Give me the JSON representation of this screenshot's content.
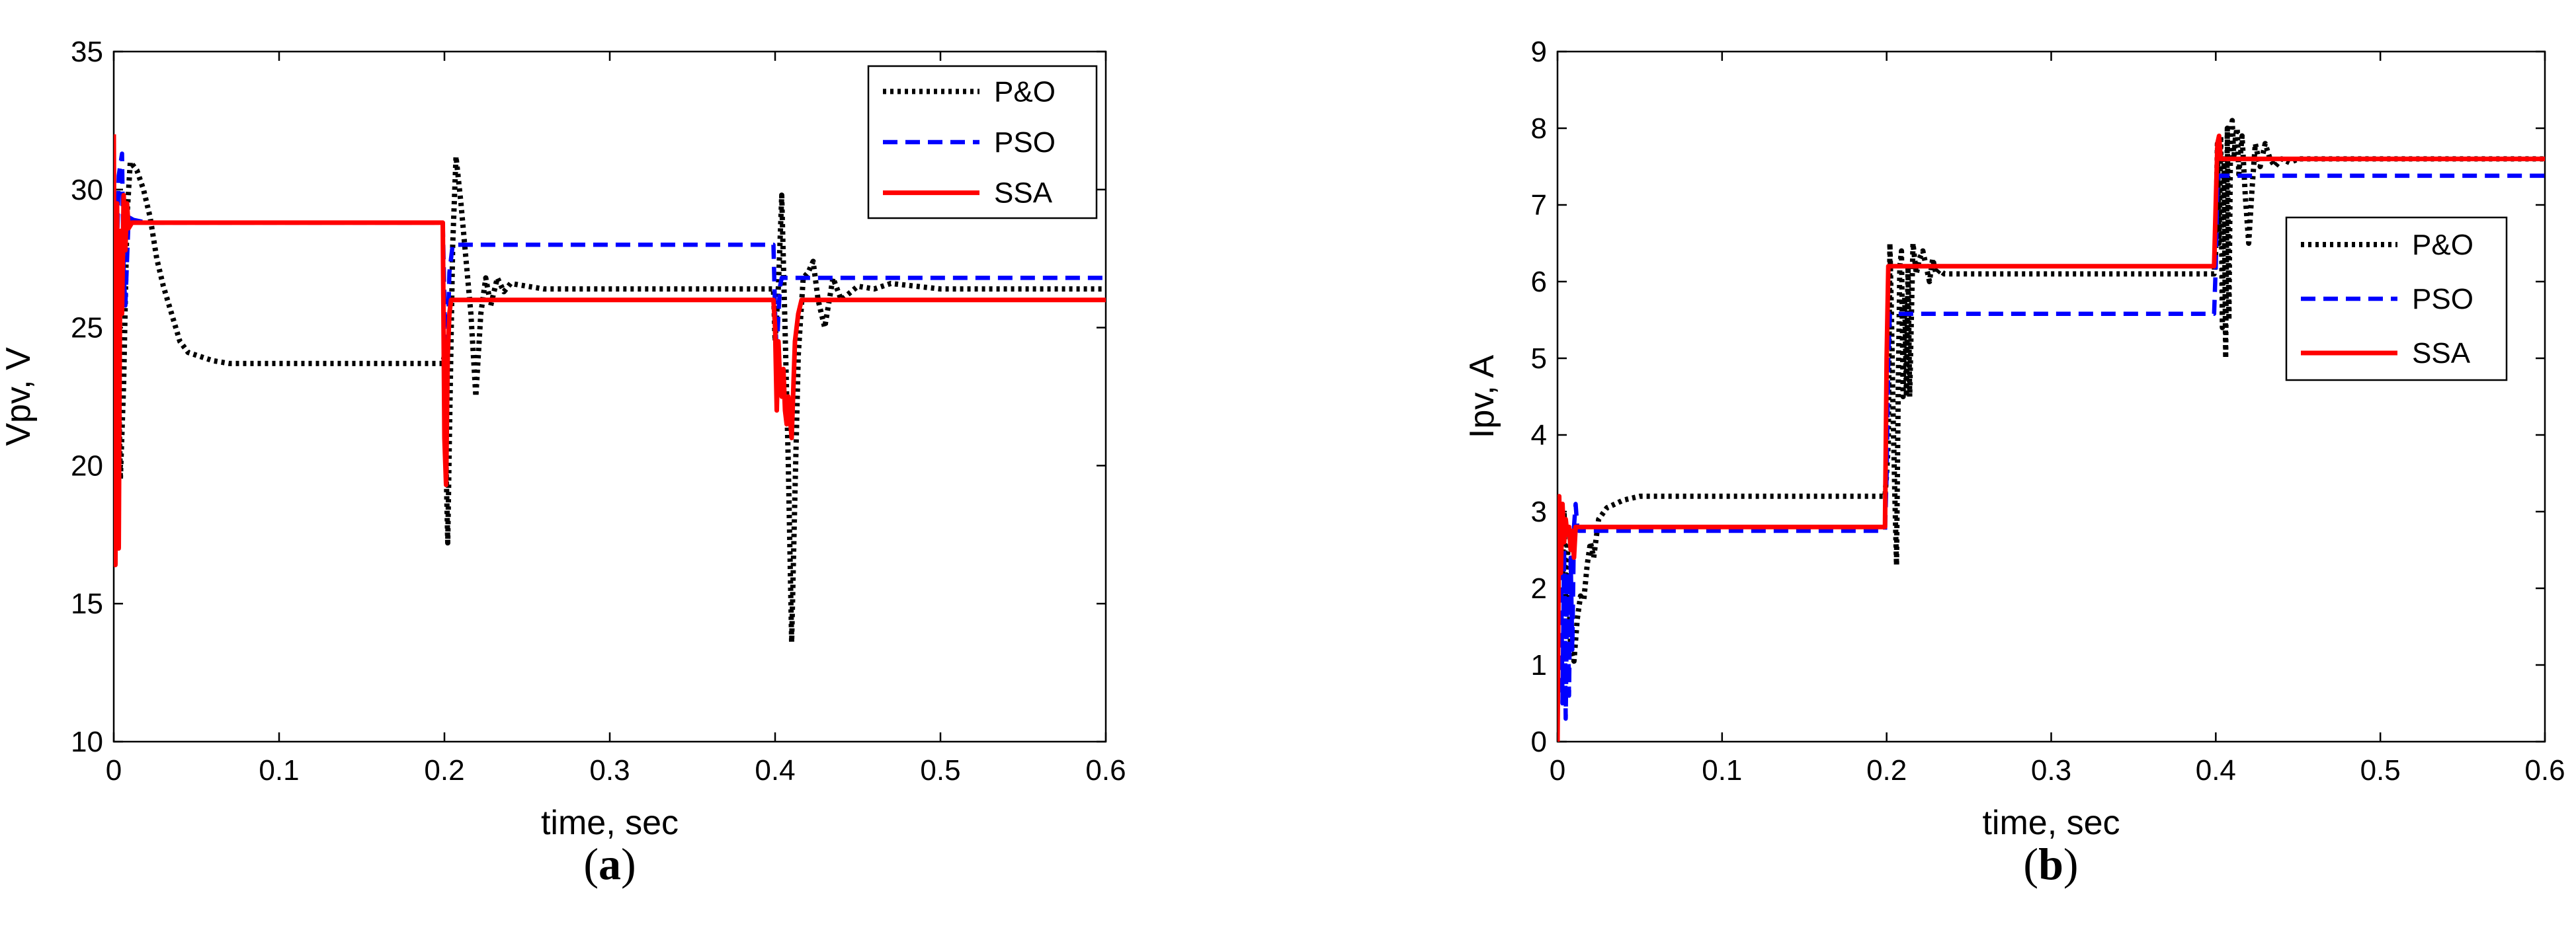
{
  "chart_data": [
    {
      "type": "line",
      "caption": "(a)",
      "xlabel": "time, sec",
      "ylabel": "Vpv, V",
      "xlim": [
        0,
        0.6
      ],
      "ylim": [
        10,
        35
      ],
      "xticks": [
        "0",
        "0.1",
        "0.2",
        "0.3",
        "0.4",
        "0.5",
        "0.6"
      ],
      "yticks": [
        "10",
        "15",
        "20",
        "25",
        "30",
        "35"
      ],
      "legend_position": "top-right",
      "series": [
        {
          "name": "P&O",
          "color": "#000000",
          "style": "dotted",
          "x": [
            0,
            0.002,
            0.004,
            0.006,
            0.008,
            0.01,
            0.014,
            0.018,
            0.022,
            0.026,
            0.03,
            0.035,
            0.04,
            0.045,
            0.05,
            0.06,
            0.07,
            0.08,
            0.1,
            0.15,
            0.199,
            0.2,
            0.201,
            0.202,
            0.203,
            0.205,
            0.207,
            0.21,
            0.213,
            0.216,
            0.219,
            0.222,
            0.225,
            0.228,
            0.232,
            0.236,
            0.24,
            0.25,
            0.26,
            0.28,
            0.3,
            0.35,
            0.399,
            0.4,
            0.402,
            0.404,
            0.406,
            0.408,
            0.41,
            0.412,
            0.414,
            0.417,
            0.42,
            0.423,
            0.426,
            0.43,
            0.435,
            0.44,
            0.45,
            0.46,
            0.47,
            0.5,
            0.55,
            0.6
          ],
          "y": [
            22,
            26,
            19.5,
            23,
            29,
            31,
            30.7,
            30,
            29,
            27.5,
            26.5,
            25.5,
            24.5,
            24.1,
            24,
            23.8,
            23.7,
            23.7,
            23.7,
            23.7,
            23.7,
            24,
            20,
            17.2,
            21,
            28,
            31.2,
            29.5,
            27.5,
            25.5,
            22.5,
            25.5,
            26.8,
            25.8,
            26.8,
            26.3,
            26.6,
            26.5,
            26.4,
            26.4,
            26.4,
            26.4,
            26.4,
            24.5,
            26.5,
            29.8,
            25,
            20,
            13.6,
            19,
            24,
            26.8,
            27,
            27.4,
            26,
            25,
            26.8,
            26,
            26.5,
            26.4,
            26.6,
            26.4,
            26.4,
            26.4
          ]
        },
        {
          "name": "PSO",
          "color": "#0000ff",
          "style": "dashed",
          "x": [
            0,
            0.002,
            0.003,
            0.005,
            0.006,
            0.007,
            0.009,
            0.012,
            0.02,
            0.1,
            0.199,
            0.2,
            0.201,
            0.202,
            0.203,
            0.205,
            0.3,
            0.399,
            0.4,
            0.401,
            0.402,
            0.403,
            0.404,
            0.405,
            0.5,
            0.6
          ],
          "y": [
            16.4,
            28,
            30.5,
            31.3,
            27,
            25.8,
            29,
            28.9,
            28.8,
            28.8,
            28.8,
            26,
            22,
            24.5,
            27,
            28,
            28,
            28,
            25.5,
            24,
            25.5,
            26.5,
            26.8,
            26.8,
            26.8,
            26.8
          ]
        },
        {
          "name": "SSA",
          "color": "#ff0000",
          "style": "solid",
          "x": [
            0,
            0.001,
            0.002,
            0.003,
            0.004,
            0.005,
            0.006,
            0.007,
            0.008,
            0.009,
            0.011,
            0.015,
            0.02,
            0.1,
            0.199,
            0.2,
            0.201,
            0.202,
            0.203,
            0.204,
            0.3,
            0.399,
            0.4,
            0.401,
            0.402,
            0.403,
            0.404,
            0.405,
            0.406,
            0.407,
            0.408,
            0.41,
            0.412,
            0.414,
            0.416,
            0.5,
            0.6
          ],
          "y": [
            32,
            16.4,
            29.5,
            17,
            28.5,
            25.5,
            29.8,
            27.8,
            29.5,
            28.6,
            28.8,
            28.8,
            28.8,
            28.8,
            28.8,
            21,
            19.3,
            24,
            25.5,
            26,
            26,
            26,
            25,
            22,
            24.5,
            23,
            22.5,
            23.5,
            22,
            21.5,
            22.5,
            21,
            24.5,
            25.5,
            26,
            26,
            26
          ]
        }
      ]
    },
    {
      "type": "line",
      "caption": "(b)",
      "xlabel": "time, sec",
      "ylabel": "Ipv, A",
      "xlim": [
        0,
        0.6
      ],
      "ylim": [
        0,
        9
      ],
      "xticks": [
        "0",
        "0.1",
        "0.2",
        "0.3",
        "0.4",
        "0.5",
        "0.6"
      ],
      "yticks": [
        "0",
        "1",
        "2",
        "3",
        "4",
        "5",
        "6",
        "7",
        "8",
        "9"
      ],
      "legend_position": "right",
      "series": [
        {
          "name": "P&O",
          "color": "#000000",
          "style": "dotted",
          "x": [
            0,
            0.001,
            0.002,
            0.003,
            0.004,
            0.005,
            0.006,
            0.008,
            0.01,
            0.012,
            0.014,
            0.016,
            0.018,
            0.02,
            0.022,
            0.025,
            0.03,
            0.035,
            0.04,
            0.05,
            0.07,
            0.1,
            0.15,
            0.199,
            0.2,
            0.201,
            0.202,
            0.203,
            0.204,
            0.205,
            0.206,
            0.207,
            0.208,
            0.209,
            0.21,
            0.211,
            0.212,
            0.213,
            0.214,
            0.216,
            0.218,
            0.22,
            0.222,
            0.224,
            0.226,
            0.228,
            0.23,
            0.232,
            0.235,
            0.24,
            0.25,
            0.26,
            0.28,
            0.3,
            0.35,
            0.399,
            0.4,
            0.401,
            0.402,
            0.403,
            0.404,
            0.405,
            0.406,
            0.407,
            0.408,
            0.409,
            0.41,
            0.411,
            0.412,
            0.413,
            0.414,
            0.416,
            0.418,
            0.42,
            0.422,
            0.424,
            0.427,
            0.43,
            0.433,
            0.436,
            0.44,
            0.445,
            0.45,
            0.46,
            0.5,
            0.55,
            0.6
          ],
          "y": [
            3.2,
            2.5,
            3.1,
            2.2,
            3,
            1.8,
            2.6,
            1.2,
            1.05,
            1.6,
            1.9,
            1.85,
            2.3,
            2.6,
            2.4,
            2.9,
            3.05,
            3.1,
            3.15,
            3.2,
            3.2,
            3.2,
            3.2,
            3.2,
            3.5,
            3.9,
            6.5,
            5.5,
            4.2,
            3.2,
            2.3,
            4.5,
            6.2,
            6.4,
            4.5,
            5.8,
            4.5,
            6.2,
            4.5,
            6.5,
            6.1,
            6.3,
            6.4,
            6.2,
            6,
            6.3,
            6.1,
            6.15,
            6.1,
            6.1,
            6.1,
            6.1,
            6.1,
            6.1,
            6.1,
            6.1,
            6.4,
            7.8,
            6.5,
            7.9,
            5.4,
            7.6,
            5,
            8,
            5.5,
            7.9,
            8.1,
            7.6,
            7.9,
            8,
            7.4,
            7.9,
            7.1,
            6.5,
            7.2,
            7.8,
            7.5,
            7.8,
            7.6,
            7.5,
            7.6,
            7.55,
            7.6,
            7.6,
            7.6,
            7.6,
            7.6
          ]
        },
        {
          "name": "PSO",
          "color": "#0000ff",
          "style": "dashed",
          "x": [
            0,
            0.001,
            0.002,
            0.003,
            0.004,
            0.005,
            0.006,
            0.007,
            0.008,
            0.009,
            0.01,
            0.011,
            0.012,
            0.013,
            0.015,
            0.02,
            0.1,
            0.199,
            0.2,
            0.201,
            0.202,
            0.203,
            0.3,
            0.399,
            0.4,
            0.401,
            0.402,
            0.403,
            0.5,
            0.6
          ],
          "y": [
            0,
            3.2,
            2.6,
            0.5,
            2.5,
            0.3,
            2.2,
            0.6,
            2.4,
            1.2,
            2.8,
            3.1,
            2.8,
            2.75,
            2.75,
            2.75,
            2.75,
            2.75,
            3.5,
            5,
            5.58,
            5.58,
            5.58,
            5.58,
            6.2,
            7.3,
            7.38,
            7.38,
            7.38,
            7.38
          ]
        },
        {
          "name": "SSA",
          "color": "#ff0000",
          "style": "solid",
          "x": [
            0,
            0.001,
            0.002,
            0.003,
            0.004,
            0.005,
            0.006,
            0.007,
            0.008,
            0.009,
            0.01,
            0.011,
            0.012,
            0.014,
            0.02,
            0.1,
            0.199,
            0.2,
            0.201,
            0.202,
            0.3,
            0.399,
            0.4,
            0.401,
            0.402,
            0.403,
            0.404,
            0.405,
            0.5,
            0.6
          ],
          "y": [
            0,
            3.2,
            2.2,
            3.1,
            2.6,
            2.9,
            2.7,
            2.8,
            2.5,
            2.75,
            2.4,
            2.8,
            2.8,
            2.8,
            2.8,
            2.8,
            2.8,
            5,
            6.2,
            6.2,
            6.2,
            6.2,
            7,
            7.8,
            7.9,
            7.6,
            7.6,
            7.6,
            7.6,
            7.6
          ]
        }
      ]
    }
  ]
}
